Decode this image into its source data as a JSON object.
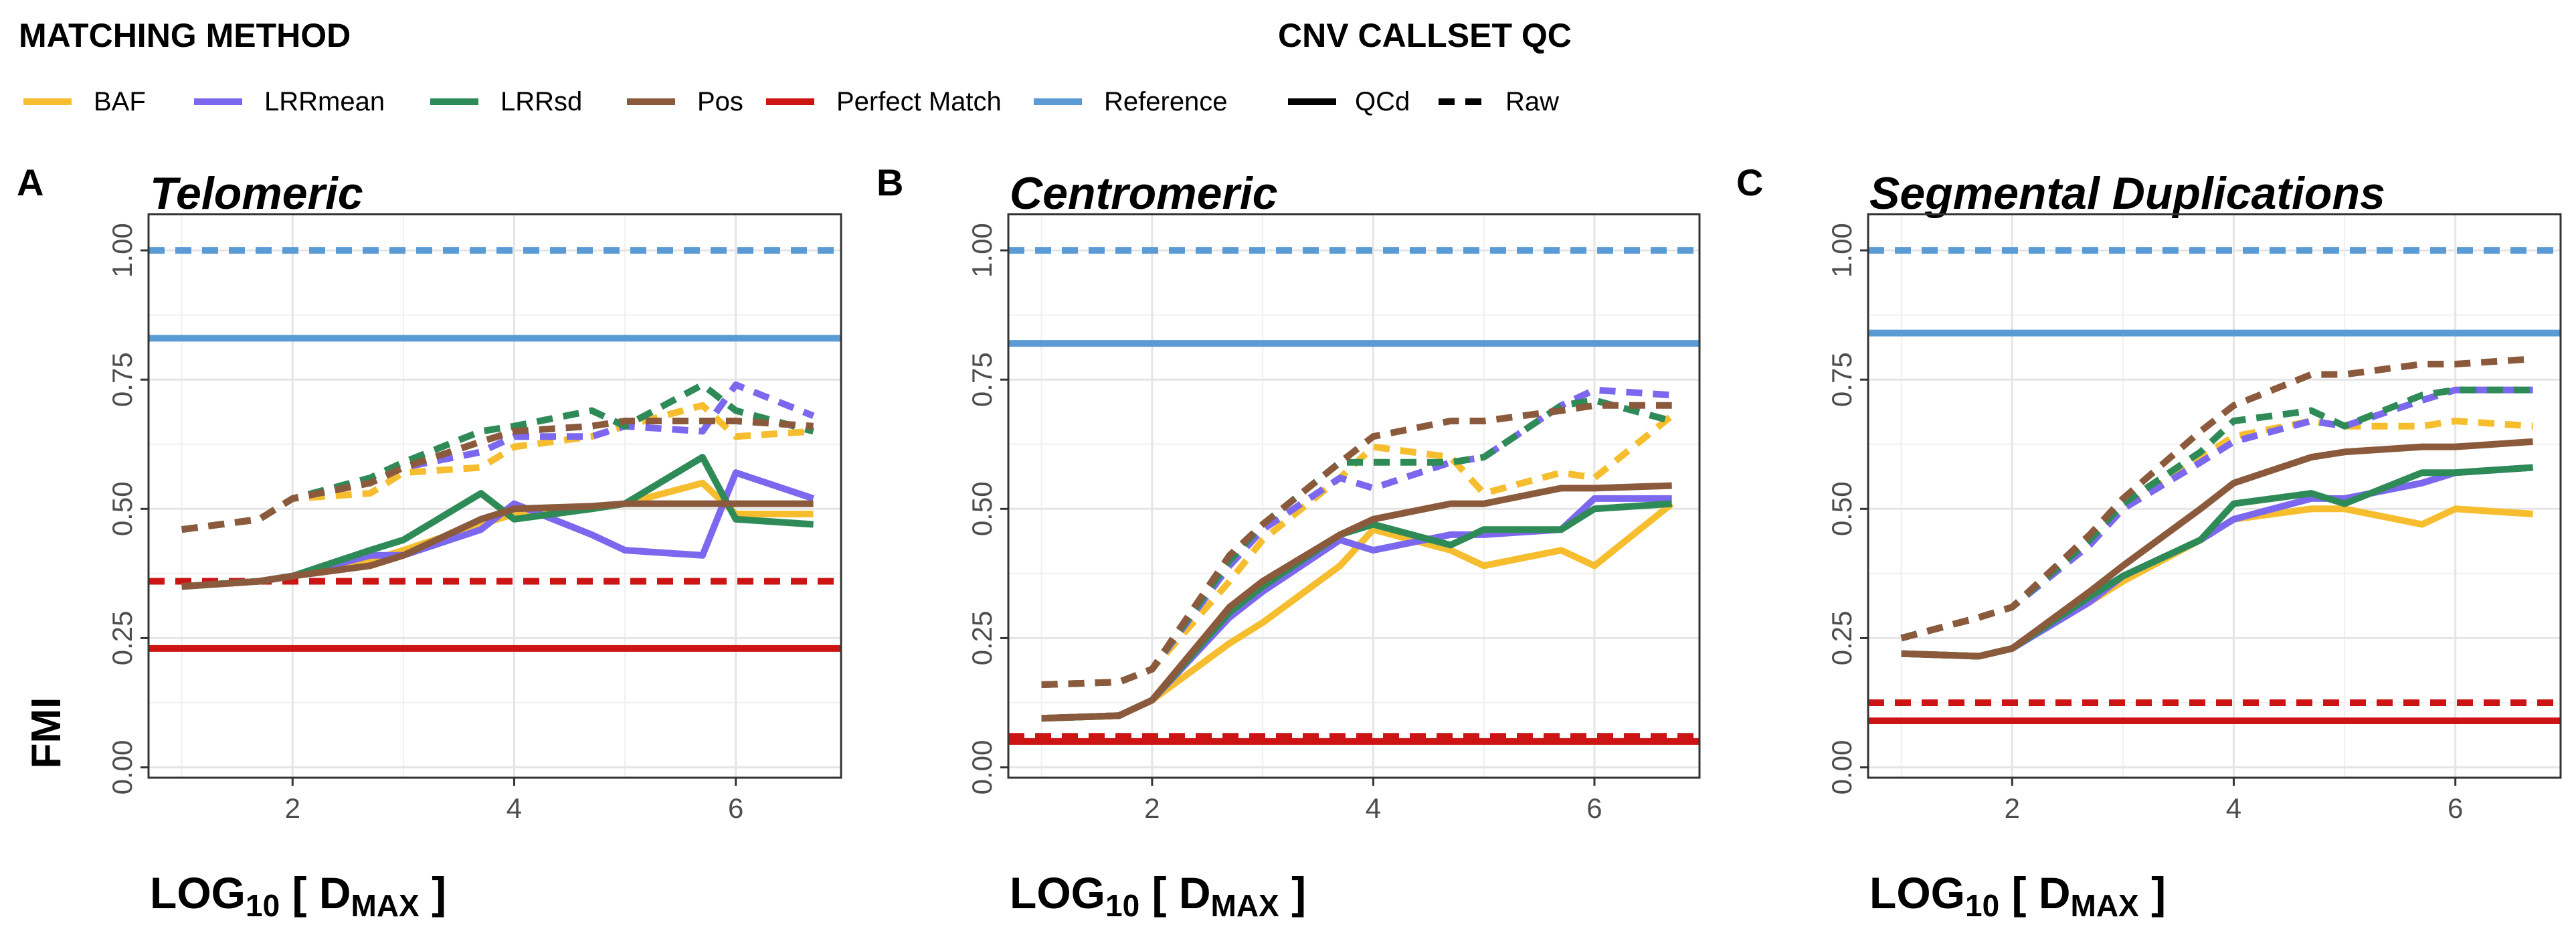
{
  "legend": {
    "matching_title": "MATCHING METHOD",
    "qc_title": "CNV CALLSET QC",
    "methods": [
      {
        "label": "BAF",
        "color": "#F6BE2E"
      },
      {
        "label": "LRRmean",
        "color": "#7B68EE"
      },
      {
        "label": "LRRsd",
        "color": "#2E8B57"
      },
      {
        "label": "Pos",
        "color": "#8B5A3C"
      },
      {
        "label": "Perfect Match",
        "color": "#CC1414"
      },
      {
        "label": "Reference",
        "color": "#5A9BD5"
      }
    ],
    "linetypes": [
      {
        "label": "QCd",
        "style": "solid"
      },
      {
        "label": "Raw",
        "style": "dashed"
      }
    ]
  },
  "axes": {
    "ylabel": "FMI",
    "xlabel_main": "LOG",
    "xlabel_sub": "10",
    "xlabel_open": " [ D",
    "xlabel_dsub": "MAX",
    "xlabel_close": " ]"
  },
  "chart_data": [
    {
      "letter": "A",
      "title": "Telomeric",
      "type": "line",
      "xlim": [
        0.7,
        6.95
      ],
      "ylim": [
        -0.02,
        1.07
      ],
      "xticks": [
        "2",
        "4",
        "6"
      ],
      "yticks": [
        "0.00",
        "0.25",
        "0.50",
        "0.75",
        "1.00"
      ],
      "x": [
        1.0,
        1.7,
        2.0,
        2.7,
        3.0,
        3.7,
        4.0,
        4.7,
        5.0,
        5.7,
        6.0,
        6.7
      ],
      "hlines": [
        {
          "method": "Reference",
          "qc": "Raw",
          "value": 1.0
        },
        {
          "method": "Reference",
          "qc": "QCd",
          "value": 0.83
        },
        {
          "method": "Perfect Match",
          "qc": "Raw",
          "value": 0.36
        },
        {
          "method": "Perfect Match",
          "qc": "QCd",
          "value": 0.23
        }
      ],
      "series": [
        {
          "method": "BAF",
          "qc": "Raw",
          "values": [
            0.46,
            0.48,
            0.52,
            0.53,
            0.57,
            0.58,
            0.62,
            0.64,
            0.66,
            0.7,
            0.64,
            0.65
          ]
        },
        {
          "method": "LRRmean",
          "qc": "Raw",
          "values": [
            0.46,
            0.48,
            0.52,
            0.55,
            0.58,
            0.61,
            0.64,
            0.64,
            0.66,
            0.65,
            0.74,
            0.68
          ]
        },
        {
          "method": "LRRsd",
          "qc": "Raw",
          "values": [
            0.46,
            0.48,
            0.52,
            0.56,
            0.59,
            0.65,
            0.66,
            0.69,
            0.66,
            0.74,
            0.69,
            0.65
          ]
        },
        {
          "method": "Pos",
          "qc": "Raw",
          "values": [
            0.46,
            0.48,
            0.52,
            0.55,
            0.58,
            0.63,
            0.65,
            0.66,
            0.67,
            0.67,
            0.67,
            0.66
          ]
        },
        {
          "method": "BAF",
          "qc": "QCd",
          "values": [
            0.35,
            0.36,
            0.37,
            0.4,
            0.42,
            0.47,
            0.49,
            0.5,
            0.51,
            0.55,
            0.49,
            0.49
          ]
        },
        {
          "method": "LRRmean",
          "qc": "QCd",
          "values": [
            0.35,
            0.36,
            0.37,
            0.41,
            0.41,
            0.46,
            0.51,
            0.45,
            0.42,
            0.41,
            0.57,
            0.52
          ]
        },
        {
          "method": "LRRsd",
          "qc": "QCd",
          "values": [
            0.35,
            0.36,
            0.37,
            0.42,
            0.44,
            0.53,
            0.48,
            0.5,
            0.51,
            0.6,
            0.48,
            0.47
          ]
        },
        {
          "method": "Pos",
          "qc": "QCd",
          "values": [
            0.35,
            0.36,
            0.37,
            0.39,
            0.41,
            0.48,
            0.5,
            0.505,
            0.51,
            0.51,
            0.51,
            0.51
          ]
        }
      ]
    },
    {
      "letter": "B",
      "title": "Centromeric",
      "type": "line",
      "xlim": [
        0.7,
        6.95
      ],
      "ylim": [
        -0.02,
        1.07
      ],
      "xticks": [
        "2",
        "4",
        "6"
      ],
      "yticks": [
        "0.00",
        "0.25",
        "0.50",
        "0.75",
        "1.00"
      ],
      "x": [
        1.0,
        1.7,
        2.0,
        2.7,
        3.0,
        3.7,
        4.0,
        4.7,
        5.0,
        5.7,
        6.0,
        6.7
      ],
      "hlines": [
        {
          "method": "Reference",
          "qc": "Raw",
          "value": 1.0
        },
        {
          "method": "Reference",
          "qc": "QCd",
          "value": 0.82
        },
        {
          "method": "Perfect Match",
          "qc": "Raw",
          "value": 0.06
        },
        {
          "method": "Perfect Match",
          "qc": "QCd",
          "value": 0.05
        }
      ],
      "series": [
        {
          "method": "BAF",
          "qc": "Raw",
          "values": [
            0.16,
            0.165,
            0.19,
            0.36,
            0.44,
            0.56,
            0.62,
            0.6,
            0.53,
            0.57,
            0.56,
            0.68
          ]
        },
        {
          "method": "LRRmean",
          "qc": "Raw",
          "values": [
            0.16,
            0.165,
            0.19,
            0.39,
            0.46,
            0.56,
            0.54,
            0.59,
            0.6,
            0.7,
            0.73,
            0.72
          ]
        },
        {
          "method": "LRRsd",
          "qc": "Raw",
          "values": [
            0.16,
            0.165,
            0.19,
            0.4,
            0.47,
            0.59,
            0.59,
            0.59,
            0.6,
            0.7,
            0.71,
            0.67
          ]
        },
        {
          "method": "Pos",
          "qc": "Raw",
          "values": [
            0.16,
            0.165,
            0.19,
            0.41,
            0.47,
            0.59,
            0.64,
            0.67,
            0.67,
            0.69,
            0.7,
            0.7
          ]
        },
        {
          "method": "BAF",
          "qc": "QCd",
          "values": [
            0.095,
            0.1,
            0.13,
            0.24,
            0.28,
            0.39,
            0.46,
            0.42,
            0.39,
            0.42,
            0.39,
            0.51
          ]
        },
        {
          "method": "LRRmean",
          "qc": "QCd",
          "values": [
            0.095,
            0.1,
            0.13,
            0.29,
            0.34,
            0.44,
            0.42,
            0.45,
            0.45,
            0.46,
            0.52,
            0.52
          ]
        },
        {
          "method": "LRRsd",
          "qc": "QCd",
          "values": [
            0.095,
            0.1,
            0.13,
            0.3,
            0.35,
            0.45,
            0.47,
            0.43,
            0.46,
            0.46,
            0.5,
            0.51
          ]
        },
        {
          "method": "Pos",
          "qc": "QCd",
          "values": [
            0.095,
            0.1,
            0.13,
            0.31,
            0.36,
            0.45,
            0.48,
            0.51,
            0.51,
            0.54,
            0.54,
            0.545
          ]
        }
      ]
    },
    {
      "letter": "C",
      "title": "Segmental Duplications",
      "type": "line",
      "xlim": [
        0.7,
        6.95
      ],
      "ylim": [
        -0.02,
        1.07
      ],
      "xticks": [
        "2",
        "4",
        "6"
      ],
      "yticks": [
        "0.00",
        "0.25",
        "0.50",
        "0.75",
        "1.00"
      ],
      "x": [
        1.0,
        1.7,
        2.0,
        2.7,
        3.0,
        3.7,
        4.0,
        4.7,
        5.0,
        5.7,
        6.0,
        6.7
      ],
      "hlines": [
        {
          "method": "Reference",
          "qc": "Raw",
          "value": 1.0
        },
        {
          "method": "Reference",
          "qc": "QCd",
          "value": 0.84
        },
        {
          "method": "Perfect Match",
          "qc": "Raw",
          "value": 0.125
        },
        {
          "method": "Perfect Match",
          "qc": "QCd",
          "value": 0.09
        }
      ],
      "series": [
        {
          "method": "BAF",
          "qc": "Raw",
          "values": [
            0.25,
            0.29,
            0.31,
            0.44,
            0.5,
            0.6,
            0.64,
            0.67,
            0.66,
            0.66,
            0.67,
            0.66
          ]
        },
        {
          "method": "LRRmean",
          "qc": "Raw",
          "values": [
            0.25,
            0.29,
            0.31,
            0.43,
            0.5,
            0.59,
            0.63,
            0.67,
            0.66,
            0.71,
            0.73,
            0.73
          ]
        },
        {
          "method": "LRRsd",
          "qc": "Raw",
          "values": [
            0.25,
            0.29,
            0.31,
            0.44,
            0.51,
            0.61,
            0.67,
            0.69,
            0.66,
            0.72,
            0.73,
            0.73
          ]
        },
        {
          "method": "Pos",
          "qc": "Raw",
          "values": [
            0.25,
            0.29,
            0.31,
            0.45,
            0.52,
            0.65,
            0.7,
            0.76,
            0.76,
            0.78,
            0.78,
            0.79
          ]
        },
        {
          "method": "BAF",
          "qc": "QCd",
          "values": [
            0.22,
            0.215,
            0.23,
            0.32,
            0.36,
            0.44,
            0.48,
            0.5,
            0.5,
            0.47,
            0.5,
            0.49
          ]
        },
        {
          "method": "LRRmean",
          "qc": "QCd",
          "values": [
            0.22,
            0.215,
            0.23,
            0.32,
            0.37,
            0.44,
            0.48,
            0.52,
            0.52,
            0.55,
            0.57,
            0.58
          ]
        },
        {
          "method": "LRRsd",
          "qc": "QCd",
          "values": [
            0.22,
            0.215,
            0.23,
            0.33,
            0.37,
            0.44,
            0.51,
            0.53,
            0.51,
            0.57,
            0.57,
            0.58
          ]
        },
        {
          "method": "Pos",
          "qc": "QCd",
          "values": [
            0.22,
            0.215,
            0.23,
            0.34,
            0.39,
            0.5,
            0.55,
            0.6,
            0.61,
            0.62,
            0.62,
            0.63
          ]
        }
      ]
    }
  ]
}
